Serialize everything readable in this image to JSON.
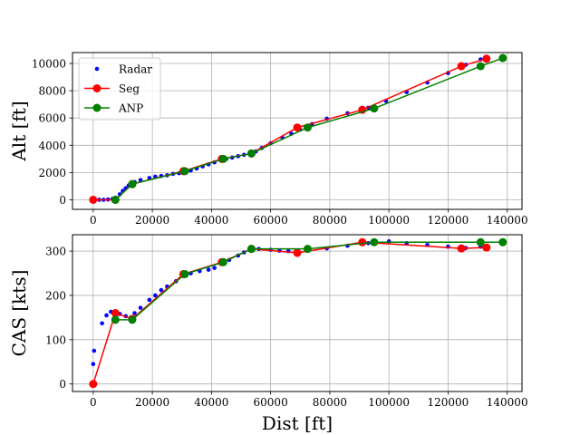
{
  "chart_data": [
    {
      "type": "line",
      "title": "",
      "xlabel": "",
      "ylabel": "Alt [ft]",
      "xlim": [
        -7000,
        145000
      ],
      "ylim": [
        -700,
        10800
      ],
      "xticks": [
        "0",
        "20000",
        "40000",
        "60000",
        "80000",
        "100000",
        "120000",
        "140000"
      ],
      "xtick_values": [
        0,
        20000,
        40000,
        60000,
        80000,
        100000,
        120000,
        140000
      ],
      "yticks": [
        "0",
        "2000",
        "4000",
        "6000",
        "8000",
        "10000"
      ],
      "ytick_values": [
        0,
        2000,
        4000,
        6000,
        8000,
        10000
      ],
      "show_xtick_labels": true,
      "grid": true,
      "legend_position": "top-left",
      "series": [
        {
          "name": "Radar",
          "color": "#0000ff",
          "style": "points",
          "x": [
            0,
            2000,
            3500,
            5000,
            6500,
            7500,
            9000,
            10000,
            11000,
            12000,
            14000,
            16000,
            19000,
            21000,
            23000,
            25000,
            27000,
            29000,
            31000,
            33000,
            35000,
            37000,
            39000,
            41000,
            43000,
            45000,
            47000,
            49000,
            51000,
            53000,
            55000,
            57000,
            60000,
            64000,
            67000,
            70000,
            74000,
            79000,
            86000,
            93000,
            99000,
            106000,
            113000,
            120000,
            126000,
            131000
          ],
          "y": [
            0,
            0,
            0,
            20,
            60,
            150,
            400,
            650,
            850,
            1050,
            1300,
            1450,
            1600,
            1700,
            1750,
            1800,
            1900,
            1950,
            2050,
            2150,
            2300,
            2450,
            2600,
            2750,
            2900,
            3000,
            3100,
            3200,
            3300,
            3350,
            3550,
            3800,
            4150,
            4550,
            4850,
            5150,
            5550,
            5950,
            6350,
            6750,
            7250,
            7900,
            8600,
            9300,
            9900,
            10300
          ]
        },
        {
          "name": "Seg",
          "color": "#ff0000",
          "style": "line-markers",
          "x": [
            0,
            7500,
            13200,
            30500,
            43500,
            53500,
            69000,
            91000,
            124500,
            133000
          ],
          "y": [
            0,
            0,
            1150,
            2100,
            3000,
            3400,
            5300,
            6600,
            9800,
            10350
          ]
        },
        {
          "name": "ANP",
          "color": "#008000",
          "style": "line-markers",
          "x": [
            7500,
            13200,
            31000,
            44000,
            53500,
            72500,
            95000,
            131000,
            138500
          ],
          "y": [
            0,
            1150,
            2100,
            3000,
            3400,
            5300,
            6700,
            9800,
            10400
          ]
        }
      ]
    },
    {
      "type": "line",
      "title": "",
      "xlabel": "Dist [ft]",
      "ylabel": "CAS [kts]",
      "xlim": [
        -7000,
        145000
      ],
      "ylim": [
        -17,
        337
      ],
      "xticks": [
        "0",
        "20000",
        "40000",
        "60000",
        "80000",
        "100000",
        "120000",
        "140000"
      ],
      "xtick_values": [
        0,
        20000,
        40000,
        60000,
        80000,
        100000,
        120000,
        140000
      ],
      "yticks": [
        "0",
        "100",
        "200",
        "300"
      ],
      "ytick_values": [
        0,
        100,
        200,
        300
      ],
      "show_xtick_labels": true,
      "grid": true,
      "legend_position": "",
      "series": [
        {
          "name": "Radar",
          "color": "#0000ff",
          "style": "points",
          "x": [
            0,
            300,
            3000,
            4500,
            6000,
            7500,
            9000,
            11000,
            14000,
            16000,
            19000,
            21000,
            23000,
            25000,
            28000,
            30000,
            33000,
            36000,
            39000,
            41000,
            44000,
            46000,
            49000,
            51000,
            53000,
            56000,
            60000,
            63000,
            66000,
            69000,
            72000,
            79000,
            86000,
            93000,
            100000,
            106000,
            113000,
            120000,
            126000,
            131000
          ],
          "y": [
            45,
            75,
            137,
            155,
            163,
            163,
            158,
            153,
            160,
            172,
            190,
            200,
            212,
            220,
            232,
            245,
            250,
            255,
            258,
            262,
            272,
            280,
            290,
            297,
            303,
            305,
            303,
            301,
            300,
            298,
            302,
            306,
            312,
            318,
            322,
            318,
            314,
            310,
            307,
            310
          ]
        },
        {
          "name": "Seg",
          "color": "#ff0000",
          "style": "line-markers",
          "x": [
            0,
            7500,
            13200,
            30500,
            43500,
            53500,
            69000,
            91000,
            124500,
            133000
          ],
          "y": [
            0,
            160,
            147,
            248,
            275,
            305,
            296,
            320,
            306,
            308
          ]
        },
        {
          "name": "ANP",
          "color": "#008000",
          "style": "line-markers",
          "x": [
            7500,
            13200,
            31000,
            44000,
            53500,
            72500,
            95000,
            131000,
            138500
          ],
          "y": [
            145,
            145,
            248,
            275,
            305,
            305,
            320,
            320,
            320
          ]
        }
      ]
    }
  ]
}
